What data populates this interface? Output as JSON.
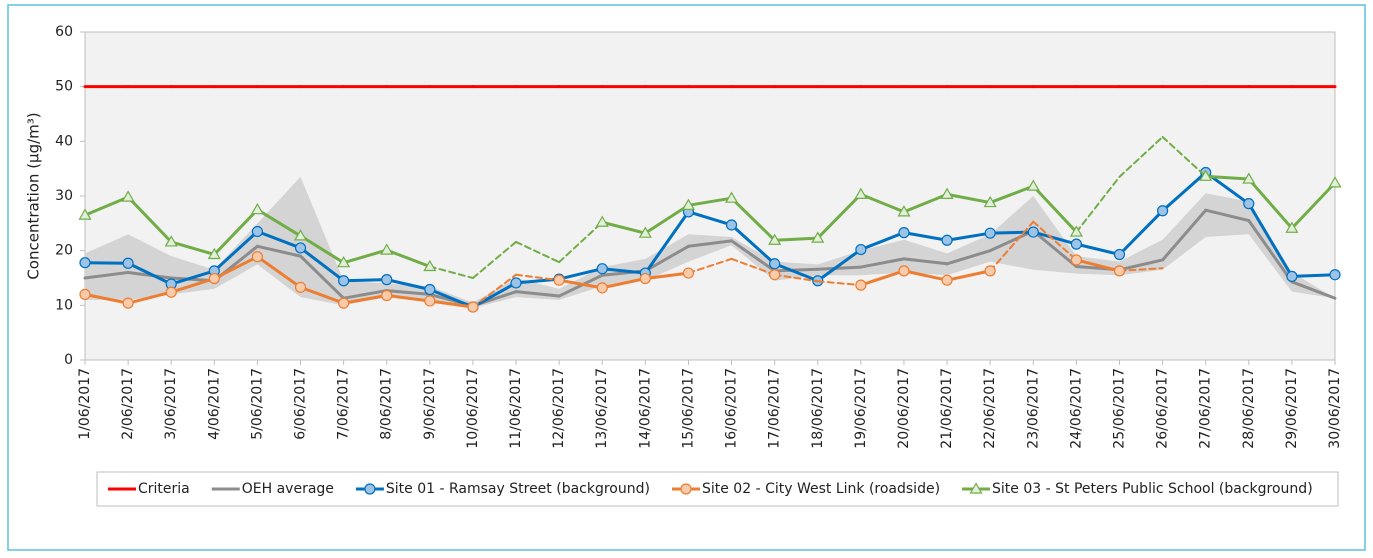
{
  "chart_data": {
    "type": "line",
    "y_label": "Concentration (µg/m³)",
    "ylim": [
      0,
      60
    ],
    "yticks": [
      0,
      10,
      20,
      30,
      40,
      50,
      60
    ],
    "grid": false,
    "legend": "bottom",
    "categories": [
      "1/06/2017",
      "2/06/2017",
      "3/06/2017",
      "4/06/2017",
      "5/06/2017",
      "6/06/2017",
      "7/06/2017",
      "8/06/2017",
      "9/06/2017",
      "10/06/2017",
      "11/06/2017",
      "12/06/2017",
      "13/06/2017",
      "14/06/2017",
      "15/06/2017",
      "16/06/2017",
      "17/06/2017",
      "18/06/2017",
      "19/06/2017",
      "20/06/2017",
      "21/06/2017",
      "22/06/2017",
      "23/06/2017",
      "24/06/2017",
      "25/06/2017",
      "26/06/2017",
      "27/06/2017",
      "28/06/2017",
      "29/06/2017",
      "30/06/2017"
    ],
    "band": {
      "color": "#d4d4d4",
      "upper": [
        19.5,
        23,
        19,
        16.5,
        25,
        33.5,
        14.5,
        14,
        13.5,
        10.5,
        15,
        13,
        17,
        18.5,
        23,
        22.5,
        18,
        17.5,
        20,
        22,
        19.5,
        23,
        30,
        19,
        18,
        22,
        30.5,
        29,
        16,
        11.3
      ],
      "lower": [
        11,
        11,
        12,
        13,
        17.5,
        11.5,
        10,
        11.5,
        11,
        9.5,
        11.5,
        11,
        13.5,
        14.5,
        18,
        21,
        14.5,
        15.5,
        15.5,
        16,
        15.5,
        18,
        16.5,
        15.8,
        15.5,
        16.5,
        22.5,
        23,
        12.5,
        11.3
      ]
    },
    "series": [
      {
        "name": "Criteria",
        "color": "#ff0000",
        "marker": "none",
        "values": [
          50,
          50,
          50,
          50,
          50,
          50,
          50,
          50,
          50,
          50,
          50,
          50,
          50,
          50,
          50,
          50,
          50,
          50,
          50,
          50,
          50,
          50,
          50,
          50,
          50,
          50,
          50,
          50,
          50,
          50
        ]
      },
      {
        "name": "OEH average",
        "color": "#8c8c8c",
        "marker": "none",
        "values": [
          15,
          16,
          15,
          14.5,
          20.8,
          19,
          11.3,
          12.7,
          12,
          9.9,
          12.5,
          11.7,
          15.5,
          16.3,
          20.8,
          21.8,
          16.3,
          16.6,
          17,
          18.5,
          17.6,
          20,
          23.6,
          17.1,
          16.5,
          18.3,
          27.4,
          25.5,
          14.3,
          11.3
        ]
      },
      {
        "name": "Site 01 - Ramsay Street (background)",
        "color": "#0070c0",
        "marker": "circle",
        "marker_fill": "#9dc3e6",
        "values": [
          17.8,
          17.7,
          13.9,
          16.3,
          23.5,
          20.5,
          14.5,
          14.7,
          12.9,
          9.7,
          14.1,
          14.8,
          16.7,
          15.9,
          27.1,
          24.7,
          17.6,
          14.5,
          20.2,
          23.3,
          21.9,
          23.2,
          23.4,
          21.2,
          19.3,
          27.3,
          34.3,
          28.6,
          15.3,
          15.6
        ]
      },
      {
        "name": "Site 02 - City West Link (roadside)",
        "color": "#ed7d31",
        "marker": "circle",
        "marker_fill": "#f8cbad",
        "values": [
          12,
          10.4,
          12.4,
          14.9,
          18.9,
          13.3,
          10.4,
          11.8,
          10.8,
          9.7,
          15.6,
          14.6,
          13.2,
          14.9,
          15.9,
          18.5,
          15.6,
          14.4,
          13.7,
          16.3,
          14.6,
          16.3,
          25.3,
          18.3,
          16.3,
          16.8,
          null,
          null,
          null,
          null
        ],
        "markers": [
          true,
          true,
          true,
          true,
          true,
          true,
          true,
          true,
          true,
          true,
          false,
          true,
          true,
          true,
          true,
          false,
          true,
          false,
          true,
          true,
          true,
          true,
          false,
          true,
          true,
          false,
          false,
          false,
          false,
          false
        ]
      },
      {
        "name": "Site 03 - St Peters Public School (background)",
        "color": "#70ad47",
        "marker": "triangle",
        "marker_fill": "#e2efda",
        "values": [
          26.5,
          29.8,
          21.6,
          19.3,
          27.5,
          22.7,
          17.8,
          20.1,
          17.1,
          15,
          21.6,
          17.9,
          25.2,
          23.2,
          28.3,
          29.6,
          21.9,
          22.3,
          30.3,
          27.1,
          30.3,
          28.8,
          31.8,
          23.4,
          33.5,
          40.8,
          33.6,
          33.1,
          24.1,
          32.4
        ],
        "markers": [
          true,
          true,
          true,
          true,
          true,
          true,
          true,
          true,
          true,
          false,
          false,
          false,
          true,
          true,
          true,
          true,
          true,
          true,
          true,
          true,
          true,
          true,
          true,
          true,
          false,
          false,
          true,
          true,
          true,
          true
        ]
      }
    ]
  }
}
